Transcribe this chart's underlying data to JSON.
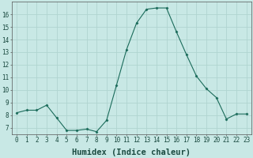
{
  "x": [
    0,
    1,
    2,
    3,
    4,
    5,
    6,
    7,
    8,
    9,
    10,
    11,
    12,
    13,
    14,
    15,
    16,
    17,
    18,
    19,
    20,
    21,
    22,
    23
  ],
  "y": [
    8.2,
    8.4,
    8.4,
    8.8,
    7.8,
    6.8,
    6.8,
    6.9,
    6.7,
    7.6,
    10.4,
    13.2,
    15.3,
    16.4,
    16.5,
    16.5,
    14.6,
    12.8,
    11.1,
    10.1,
    9.4,
    7.7,
    8.1,
    8.1
  ],
  "line_color": "#1a6b5a",
  "marker": "D",
  "marker_size": 1.5,
  "bg_color": "#c8e8e5",
  "grid_color": "#b0d4d0",
  "xlabel": "Humidex (Indice chaleur)",
  "ylim": [
    6.5,
    17.0
  ],
  "xlim": [
    -0.5,
    23.5
  ],
  "yticks": [
    7,
    8,
    9,
    10,
    11,
    12,
    13,
    14,
    15,
    16
  ],
  "xticks": [
    0,
    1,
    2,
    3,
    4,
    5,
    6,
    7,
    8,
    9,
    10,
    11,
    12,
    13,
    14,
    15,
    16,
    17,
    18,
    19,
    20,
    21,
    22,
    23
  ],
  "tick_label_fontsize": 5.5,
  "xlabel_fontsize": 7.5
}
